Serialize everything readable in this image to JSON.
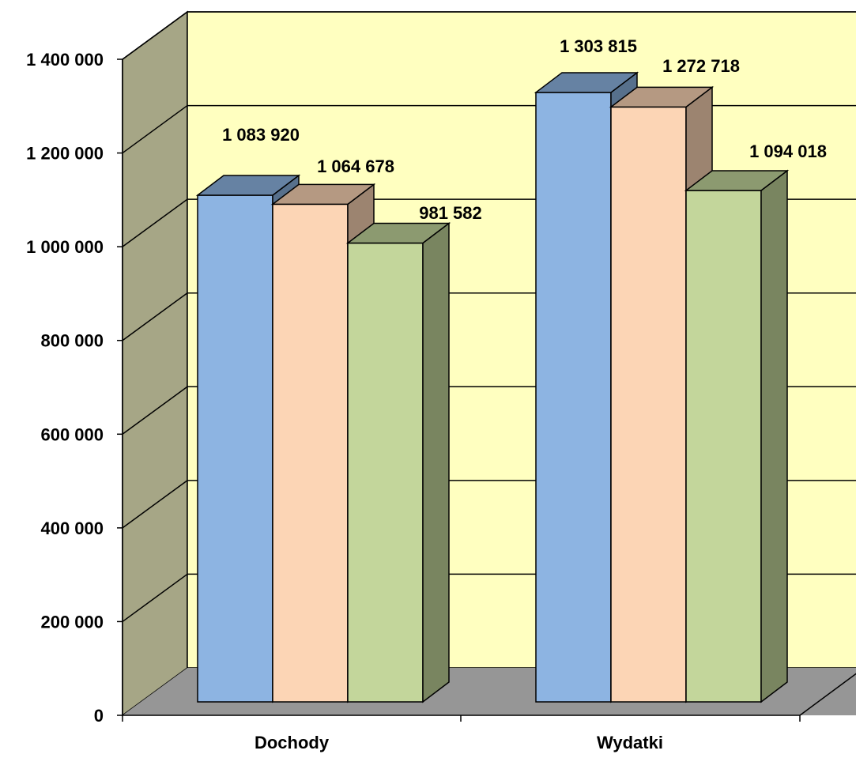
{
  "chart_data": {
    "type": "bar",
    "style": "3d-clustered-column",
    "categories": [
      "Dochody",
      "Wydatki"
    ],
    "series": [
      {
        "values": [
          1083920,
          1303815
        ],
        "color": "#8db4e2"
      },
      {
        "values": [
          1064678,
          1272718
        ],
        "color": "#fcd5b5"
      },
      {
        "values": [
          981582,
          1094018
        ],
        "color": "#c3d69b"
      }
    ],
    "data_labels": [
      [
        "1 083 920",
        "1 303 815"
      ],
      [
        "1 064 678",
        "1 272 718"
      ],
      [
        "981 582",
        "1 094 018"
      ]
    ],
    "y_ticks": [
      {
        "value": 0,
        "label": "0"
      },
      {
        "value": 200000,
        "label": "200 000"
      },
      {
        "value": 400000,
        "label": "400 000"
      },
      {
        "value": 600000,
        "label": "600 000"
      },
      {
        "value": 800000,
        "label": "800 000"
      },
      {
        "value": 1000000,
        "label": "1 000 000"
      },
      {
        "value": 1200000,
        "label": "1 200 000"
      },
      {
        "value": 1400000,
        "label": "1 400 000"
      }
    ],
    "ylim": [
      0,
      1400000
    ],
    "grid": true,
    "legend": "none",
    "colors": {
      "back_wall": "#ffffc0",
      "side_wall": "#a6a686",
      "floor": "#969696"
    }
  }
}
